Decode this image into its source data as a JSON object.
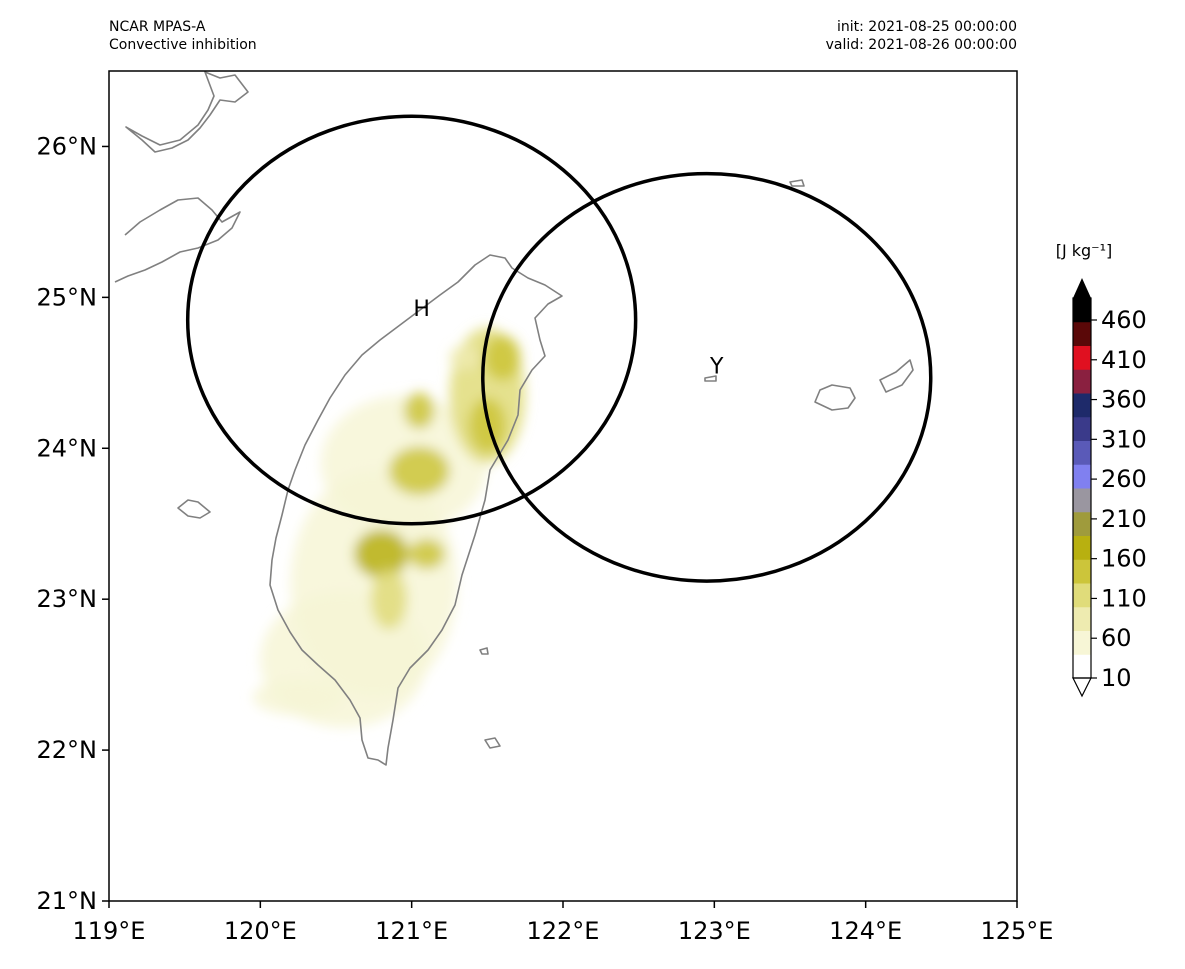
{
  "header": {
    "model": "NCAR MPAS-A",
    "field": "Convective inhibition",
    "init": "init: 2021-08-25 00:00:00",
    "valid": "valid: 2021-08-26 00:00:00"
  },
  "map": {
    "lon_range": [
      119,
      125
    ],
    "lat_range": [
      21,
      26.5
    ],
    "lon_ticks": [
      {
        "v": 119,
        "label": "119°E"
      },
      {
        "v": 120,
        "label": "120°E"
      },
      {
        "v": 121,
        "label": "121°E"
      },
      {
        "v": 122,
        "label": "122°E"
      },
      {
        "v": 123,
        "label": "123°E"
      },
      {
        "v": 124,
        "label": "124°E"
      },
      {
        "v": 125,
        "label": "125°E"
      }
    ],
    "lat_ticks": [
      {
        "v": 21,
        "label": "21°N"
      },
      {
        "v": 22,
        "label": "22°N"
      },
      {
        "v": 23,
        "label": "23°N"
      },
      {
        "v": 24,
        "label": "24°N"
      },
      {
        "v": 25,
        "label": "25°N"
      },
      {
        "v": 26,
        "label": "26°N"
      }
    ],
    "coastline_color": "#808080",
    "circles": [
      {
        "label": "H",
        "lon": 121.0,
        "lat": 24.85,
        "rlon": 1.48,
        "rlat": 1.35
      },
      {
        "label": "Y",
        "lon": 122.95,
        "lat": 24.47,
        "rlon": 1.48,
        "rlat": 1.35
      }
    ],
    "cin_blobs": [
      {
        "lon": 120.95,
        "lat": 23.9,
        "rlon": 0.55,
        "rlat": 0.45,
        "level": 20
      },
      {
        "lon": 120.75,
        "lat": 23.1,
        "rlon": 0.55,
        "rlat": 0.75,
        "level": 30
      },
      {
        "lon": 120.55,
        "lat": 22.6,
        "rlon": 0.55,
        "rlat": 0.45,
        "level": 20
      },
      {
        "lon": 120.25,
        "lat": 22.35,
        "rlon": 0.3,
        "rlat": 0.12,
        "level": 40
      },
      {
        "lon": 121.5,
        "lat": 24.35,
        "rlon": 0.25,
        "rlat": 0.45,
        "level": 80
      },
      {
        "lon": 121.05,
        "lat": 24.25,
        "rlon": 0.1,
        "rlat": 0.12,
        "level": 130
      },
      {
        "lon": 121.05,
        "lat": 23.85,
        "rlon": 0.2,
        "rlat": 0.16,
        "level": 120
      },
      {
        "lon": 120.8,
        "lat": 23.3,
        "rlon": 0.18,
        "rlat": 0.16,
        "level": 150
      },
      {
        "lon": 120.85,
        "lat": 23.0,
        "rlon": 0.12,
        "rlat": 0.2,
        "level": 90
      },
      {
        "lon": 121.1,
        "lat": 23.3,
        "rlon": 0.12,
        "rlat": 0.1,
        "level": 110
      },
      {
        "lon": 121.6,
        "lat": 24.6,
        "rlon": 0.12,
        "rlat": 0.15,
        "level": 110
      },
      {
        "lon": 121.5,
        "lat": 24.15,
        "rlon": 0.12,
        "rlat": 0.18,
        "level": 120
      },
      {
        "lon": 121.35,
        "lat": 24.6,
        "rlon": 0.1,
        "rlat": 0.08,
        "level": 70
      }
    ]
  },
  "colorbar": {
    "units_label": "[J kg⁻¹]",
    "tick_labels": [
      "460",
      "410",
      "360",
      "310",
      "260",
      "210",
      "160",
      "110",
      "60",
      "10"
    ],
    "colors": [
      "#ffffff",
      "#f7f6d6",
      "#eeebb0",
      "#e0dc7a",
      "#ccc53a",
      "#b8b010",
      "#9f9b3c",
      "#9a96a0",
      "#8080f0",
      "#5a5ab8",
      "#3a3a8a",
      "#1e2a6a",
      "#8a2040",
      "#e01020",
      "#5a0808",
      "#000000"
    ]
  }
}
